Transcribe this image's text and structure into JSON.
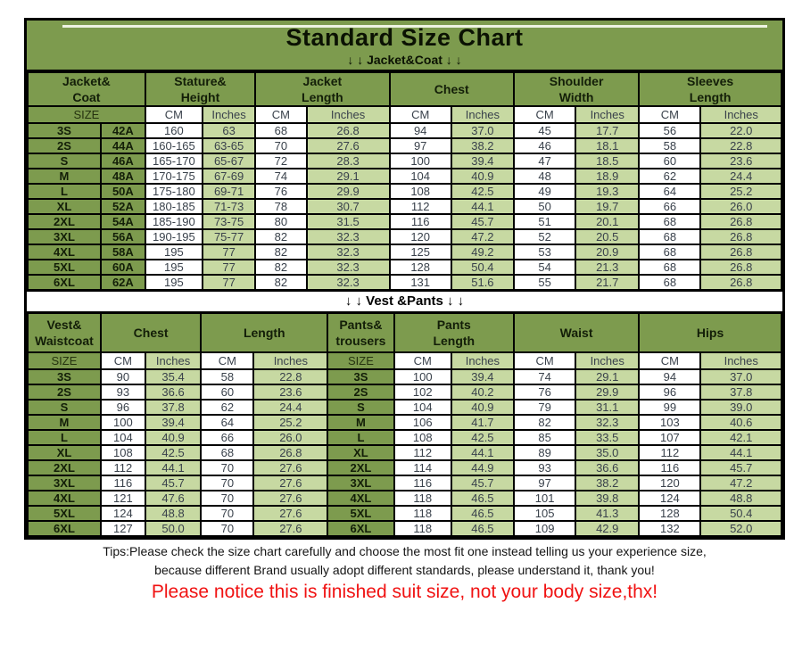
{
  "colors": {
    "header_green": "#7d9b4e",
    "light_green": "#c7d9a2",
    "notice_red": "#f01212"
  },
  "title": "Standard Size Chart",
  "jacket_section_label": "↓ ↓  Jacket&Coat ↓ ↓",
  "vest_section_label": "↓ ↓  Vest &Pants ↓ ↓",
  "labels": {
    "size": "SIZE",
    "cm": "CM",
    "inches": "Inches"
  },
  "jacket_table": {
    "column_groups": [
      {
        "label": "Jacket&\nCoat"
      },
      {
        "label": "Stature&\nHeight"
      },
      {
        "label": "Jacket\nLength"
      },
      {
        "label": "Chest"
      },
      {
        "label": "Shoulder\nWidth"
      },
      {
        "label": "Sleeves\nLength"
      }
    ],
    "rows": [
      {
        "size": "3S",
        "code": "42A",
        "values": [
          "160",
          "63",
          "68",
          "26.8",
          "94",
          "37.0",
          "45",
          "17.7",
          "56",
          "22.0"
        ]
      },
      {
        "size": "2S",
        "code": "44A",
        "values": [
          "160-165",
          "63-65",
          "70",
          "27.6",
          "97",
          "38.2",
          "46",
          "18.1",
          "58",
          "22.8"
        ]
      },
      {
        "size": "S",
        "code": "46A",
        "values": [
          "165-170",
          "65-67",
          "72",
          "28.3",
          "100",
          "39.4",
          "47",
          "18.5",
          "60",
          "23.6"
        ]
      },
      {
        "size": "M",
        "code": "48A",
        "values": [
          "170-175",
          "67-69",
          "74",
          "29.1",
          "104",
          "40.9",
          "48",
          "18.9",
          "62",
          "24.4"
        ]
      },
      {
        "size": "L",
        "code": "50A",
        "values": [
          "175-180",
          "69-71",
          "76",
          "29.9",
          "108",
          "42.5",
          "49",
          "19.3",
          "64",
          "25.2"
        ]
      },
      {
        "size": "XL",
        "code": "52A",
        "values": [
          "180-185",
          "71-73",
          "78",
          "30.7",
          "112",
          "44.1",
          "50",
          "19.7",
          "66",
          "26.0"
        ]
      },
      {
        "size": "2XL",
        "code": "54A",
        "values": [
          "185-190",
          "73-75",
          "80",
          "31.5",
          "116",
          "45.7",
          "51",
          "20.1",
          "68",
          "26.8"
        ]
      },
      {
        "size": "3XL",
        "code": "56A",
        "values": [
          "190-195",
          "75-77",
          "82",
          "32.3",
          "120",
          "47.2",
          "52",
          "20.5",
          "68",
          "26.8"
        ]
      },
      {
        "size": "4XL",
        "code": "58A",
        "values": [
          "195",
          "77",
          "82",
          "32.3",
          "125",
          "49.2",
          "53",
          "20.9",
          "68",
          "26.8"
        ]
      },
      {
        "size": "5XL",
        "code": "60A",
        "values": [
          "195",
          "77",
          "82",
          "32.3",
          "128",
          "50.4",
          "54",
          "21.3",
          "68",
          "26.8"
        ]
      },
      {
        "size": "6XL",
        "code": "62A",
        "values": [
          "195",
          "77",
          "82",
          "32.3",
          "131",
          "51.6",
          "55",
          "21.7",
          "68",
          "26.8"
        ]
      }
    ]
  },
  "vest_table": {
    "column_groups": [
      {
        "label": "Vest&\nWaistcoat",
        "span": 1
      },
      {
        "label": "Chest",
        "span": 2
      },
      {
        "label": "Length",
        "span": 2
      },
      {
        "label": "Pants&\ntrousers",
        "span": 1
      },
      {
        "label": "Pants\nLength",
        "span": 2
      },
      {
        "label": "Waist",
        "span": 2
      },
      {
        "label": "Hips",
        "span": 2
      }
    ],
    "rows": [
      {
        "size": "3S",
        "left": [
          "90",
          "35.4",
          "58",
          "22.8"
        ],
        "size2": "3S",
        "right": [
          "100",
          "39.4",
          "74",
          "29.1",
          "94",
          "37.0"
        ]
      },
      {
        "size": "2S",
        "left": [
          "93",
          "36.6",
          "60",
          "23.6"
        ],
        "size2": "2S",
        "right": [
          "102",
          "40.2",
          "76",
          "29.9",
          "96",
          "37.8"
        ]
      },
      {
        "size": "S",
        "left": [
          "96",
          "37.8",
          "62",
          "24.4"
        ],
        "size2": "S",
        "right": [
          "104",
          "40.9",
          "79",
          "31.1",
          "99",
          "39.0"
        ]
      },
      {
        "size": "M",
        "left": [
          "100",
          "39.4",
          "64",
          "25.2"
        ],
        "size2": "M",
        "right": [
          "106",
          "41.7",
          "82",
          "32.3",
          "103",
          "40.6"
        ]
      },
      {
        "size": "L",
        "left": [
          "104",
          "40.9",
          "66",
          "26.0"
        ],
        "size2": "L",
        "right": [
          "108",
          "42.5",
          "85",
          "33.5",
          "107",
          "42.1"
        ]
      },
      {
        "size": "XL",
        "left": [
          "108",
          "42.5",
          "68",
          "26.8"
        ],
        "size2": "XL",
        "right": [
          "112",
          "44.1",
          "89",
          "35.0",
          "112",
          "44.1"
        ]
      },
      {
        "size": "2XL",
        "left": [
          "112",
          "44.1",
          "70",
          "27.6"
        ],
        "size2": "2XL",
        "right": [
          "114",
          "44.9",
          "93",
          "36.6",
          "116",
          "45.7"
        ]
      },
      {
        "size": "3XL",
        "left": [
          "116",
          "45.7",
          "70",
          "27.6"
        ],
        "size2": "3XL",
        "right": [
          "116",
          "45.7",
          "97",
          "38.2",
          "120",
          "47.2"
        ]
      },
      {
        "size": "4XL",
        "left": [
          "121",
          "47.6",
          "70",
          "27.6"
        ],
        "size2": "4XL",
        "right": [
          "118",
          "46.5",
          "101",
          "39.8",
          "124",
          "48.8"
        ]
      },
      {
        "size": "5XL",
        "left": [
          "124",
          "48.8",
          "70",
          "27.6"
        ],
        "size2": "5XL",
        "right": [
          "118",
          "46.5",
          "105",
          "41.3",
          "128",
          "50.4"
        ]
      },
      {
        "size": "6XL",
        "left": [
          "127",
          "50.0",
          "70",
          "27.6"
        ],
        "size2": "6XL",
        "right": [
          "118",
          "46.5",
          "109",
          "42.9",
          "132",
          "52.0"
        ]
      }
    ]
  },
  "tips_line1": "Tips:Please check the size chart carefully and choose the most fit one instead telling us your experience size,",
  "tips_line2": "because different Brand usually adopt different standards, please understand it, thank you!",
  "notice": "Please notice this is finished suit size, not your body size,thx!"
}
